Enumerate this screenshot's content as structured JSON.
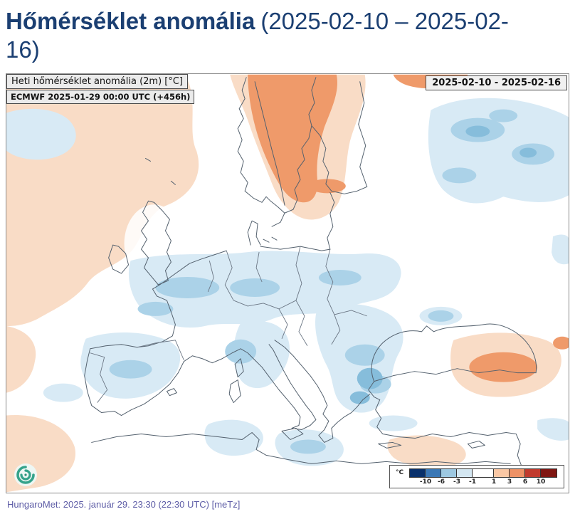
{
  "page": {
    "title_main": "Hőmérséklet anomália",
    "title_dates": "(2025-02-10 – 2025-02-16)",
    "footer": "HungaroMet: 2025. január 29. 23:30 (22:30 UTC)  [meTz]"
  },
  "map": {
    "overlay_title": "Heti hőmérséklet anomália (2m) [°C]",
    "overlay_run": "ECMWF 2025-01-29 00:00 UTC (+456h)",
    "date_range": "2025-02-10 - 2025-02-16",
    "legend": {
      "unit": "°C",
      "ticks": [
        "-10",
        "-6",
        "-3",
        "-1",
        "1",
        "3",
        "6",
        "10"
      ],
      "colors": [
        "#08306b",
        "#3b78b6",
        "#9dc8e1",
        "#d4e7f2",
        "#ffffff",
        "#f9c7a4",
        "#ee9266",
        "#c13a2d",
        "#7f1612"
      ]
    },
    "anomaly_colors": {
      "warm_light": "#f9dcc6",
      "warm_strong": "#ef9a6a",
      "cold_light": "#d8eaf5",
      "cold_medium": "#abd2e8",
      "cold_strong": "#86bddb"
    },
    "logo_color": "#35a38b"
  },
  "colors": {
    "title_text": "#1b3f72",
    "footer_text": "#5d5ca6",
    "bottom_bar": "#1c1f2e"
  }
}
